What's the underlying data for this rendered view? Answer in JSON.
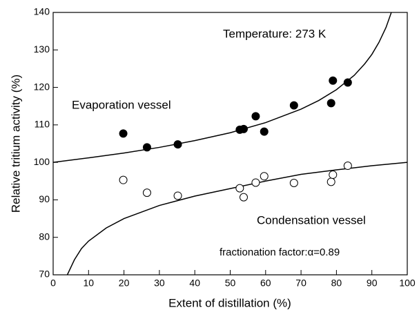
{
  "chart_data": {
    "type": "scatter",
    "xlabel": "Extent of distillation (%)",
    "ylabel": "Relative tritium activity (%)",
    "xlim": [
      0,
      100
    ],
    "ylim": [
      70,
      140
    ],
    "xticks": [
      0,
      10,
      20,
      30,
      40,
      50,
      60,
      70,
      80,
      90,
      100
    ],
    "yticks": [
      70,
      80,
      90,
      100,
      110,
      120,
      130,
      140
    ],
    "annotations": [
      "Temperature: 273 K",
      "fractionation factor:α=0.89"
    ],
    "series": [
      {
        "name": "Evaporation vessel",
        "color": "#000000",
        "filled": true,
        "x": [
          19.8,
          26.5,
          35.2,
          52.7,
          53.8,
          57.2,
          59.6,
          68,
          78.5,
          79,
          83.2
        ],
        "values": [
          107.7,
          104,
          104.8,
          108.7,
          108.9,
          112.3,
          108.2,
          115.2,
          115.8,
          121.8,
          121.3
        ]
      },
      {
        "name": "Condensation vessel",
        "color": "#000000",
        "filled": false,
        "x": [
          19.8,
          26.5,
          35.2,
          52.7,
          53.8,
          57.2,
          59.6,
          68,
          78.5,
          79,
          83.2
        ],
        "values": [
          95.3,
          91.9,
          91.1,
          93.1,
          90.7,
          94.6,
          96.3,
          94.5,
          94.8,
          96.7,
          99.1
        ]
      }
    ],
    "curves": [
      {
        "color": "#000000",
        "x": [
          0,
          10,
          20,
          30,
          40,
          50,
          60,
          70,
          75,
          80,
          85,
          88,
          90,
          92,
          94,
          95.5
        ],
        "values": [
          100,
          101.2,
          102.5,
          104,
          105.8,
          107.9,
          110.6,
          114.2,
          116.5,
          119.4,
          123.2,
          126.3,
          128.8,
          132,
          136,
          140
        ]
      },
      {
        "color": "#000000",
        "x": [
          4,
          6,
          8,
          10,
          15,
          20,
          30,
          40,
          50,
          60,
          70,
          80,
          90,
          100
        ],
        "values": [
          70,
          74,
          77,
          79,
          82.5,
          85,
          88.5,
          91,
          93,
          95,
          96.8,
          98,
          99.1,
          100
        ]
      }
    ]
  }
}
